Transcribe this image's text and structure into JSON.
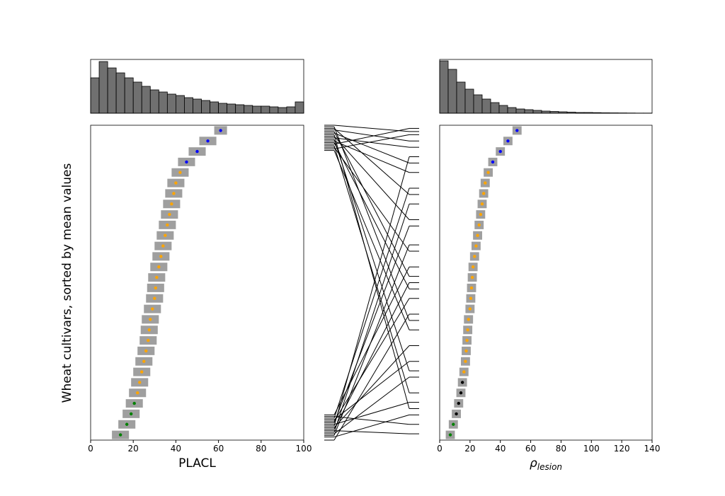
{
  "chart_data": [
    {
      "type": "histogram",
      "bins": [
        0,
        4,
        8,
        12,
        16,
        20,
        24,
        28,
        32,
        36,
        40,
        44,
        48,
        52,
        56,
        60,
        64,
        68,
        72,
        76,
        80,
        84,
        88,
        92,
        96,
        100
      ],
      "counts": [
        50,
        73,
        64,
        57,
        50,
        44,
        38,
        33,
        30,
        27,
        25,
        22,
        20,
        18,
        16,
        14,
        13,
        12,
        11,
        10,
        10,
        9,
        8,
        9,
        16
      ],
      "xlim": [
        0,
        100
      ],
      "ylim": [
        0,
        76
      ],
      "color": "#707070"
    },
    {
      "type": "scatter",
      "xlabel": "PLACL",
      "xlim": [
        0,
        100
      ],
      "xticks": [
        0,
        20,
        40,
        60,
        80,
        100
      ],
      "values": [
        14,
        17,
        19,
        20.5,
        22,
        23,
        24,
        25,
        26,
        27,
        27.5,
        28,
        29,
        30,
        30.5,
        31,
        32,
        33,
        34,
        35,
        36,
        37,
        38,
        39,
        40,
        42,
        45,
        50,
        55,
        61
      ],
      "errors": [
        4,
        4,
        4,
        4,
        4,
        4,
        4,
        4,
        4,
        4,
        4,
        4,
        4,
        4,
        4,
        4,
        4,
        4,
        4,
        4,
        4,
        4,
        4,
        4,
        4,
        4,
        4,
        4,
        4,
        3
      ],
      "colors": [
        "green",
        "green",
        "green",
        "green",
        "orange",
        "orange",
        "orange",
        "orange",
        "orange",
        "orange",
        "orange",
        "orange",
        "orange",
        "orange",
        "orange",
        "orange",
        "orange",
        "orange",
        "orange",
        "orange",
        "orange",
        "orange",
        "orange",
        "orange",
        "orange",
        "orange",
        "blue",
        "blue",
        "blue",
        "blue"
      ],
      "error_color": "#888888"
    },
    {
      "type": "links",
      "ylim": [
        0,
        100
      ],
      "links": [
        [
          0,
          40
        ],
        [
          1,
          8
        ],
        [
          1.5,
          62
        ],
        [
          2,
          20
        ],
        [
          2.5,
          75
        ],
        [
          3,
          2
        ],
        [
          3.5,
          50
        ],
        [
          4,
          30
        ],
        [
          4.5,
          90
        ],
        [
          5,
          12
        ],
        [
          5.5,
          68
        ],
        [
          6,
          45
        ],
        [
          6.5,
          25
        ],
        [
          7,
          80
        ],
        [
          7.5,
          5
        ],
        [
          8,
          55
        ],
        [
          92,
          35
        ],
        [
          92.5,
          97
        ],
        [
          93,
          60
        ],
        [
          93.5,
          15
        ],
        [
          94,
          99
        ],
        [
          94.5,
          48
        ],
        [
          95,
          85
        ],
        [
          95.5,
          22
        ],
        [
          96,
          93
        ],
        [
          96.5,
          70
        ],
        [
          97,
          10
        ],
        [
          97.5,
          88
        ],
        [
          98,
          52
        ],
        [
          98.5,
          95
        ],
        [
          99,
          78
        ],
        [
          99.5,
          38
        ],
        [
          100,
          98
        ]
      ]
    },
    {
      "type": "histogram",
      "bins": [
        0,
        5.6,
        11.2,
        16.8,
        22.4,
        28,
        33.6,
        39.2,
        44.8,
        50.4,
        56,
        61.6,
        67.2,
        72.8,
        78.4,
        84,
        89.6,
        95.2,
        100.8,
        106.4,
        112,
        117.6,
        123.2,
        128.8,
        134.4,
        140
      ],
      "counts": [
        74,
        62,
        44,
        34,
        26,
        20,
        15,
        11,
        8,
        6,
        5,
        4,
        3,
        2.5,
        2,
        1.5,
        1,
        1,
        0.8,
        0.6,
        0.5,
        0.4,
        0.3,
        0.2,
        0.2
      ],
      "xlim": [
        0,
        140
      ],
      "ylim": [
        0,
        76
      ],
      "color": "#707070"
    },
    {
      "type": "scatter",
      "xlabel": {
        "symbol": "ρ",
        "subscript": "lesion"
      },
      "xlim": [
        0,
        140
      ],
      "xticks": [
        0,
        20,
        40,
        60,
        80,
        100,
        120,
        140
      ],
      "values": [
        7,
        9,
        11,
        12.5,
        14,
        15,
        16,
        17,
        17.5,
        18,
        18.5,
        19,
        20,
        20.5,
        21,
        21.5,
        22,
        23,
        24,
        25,
        26,
        27,
        28,
        29,
        30,
        32,
        35,
        40,
        45,
        51
      ],
      "errors": [
        3,
        3,
        3,
        3,
        3,
        3,
        3,
        3,
        3,
        3,
        3,
        3,
        3,
        3,
        3,
        3,
        3,
        3,
        3,
        3,
        3,
        3,
        3,
        3,
        3,
        3,
        3,
        3,
        3,
        3
      ],
      "colors": [
        "green",
        "green",
        "black",
        "black",
        "black",
        "black",
        "orange",
        "orange",
        "orange",
        "orange",
        "orange",
        "orange",
        "orange",
        "orange",
        "orange",
        "orange",
        "orange",
        "orange",
        "orange",
        "orange",
        "orange",
        "orange",
        "orange",
        "orange",
        "orange",
        "orange",
        "blue",
        "blue",
        "blue",
        "blue"
      ],
      "error_color": "#888888"
    }
  ],
  "ylabel": "Wheat cultivars, sorted by mean values"
}
